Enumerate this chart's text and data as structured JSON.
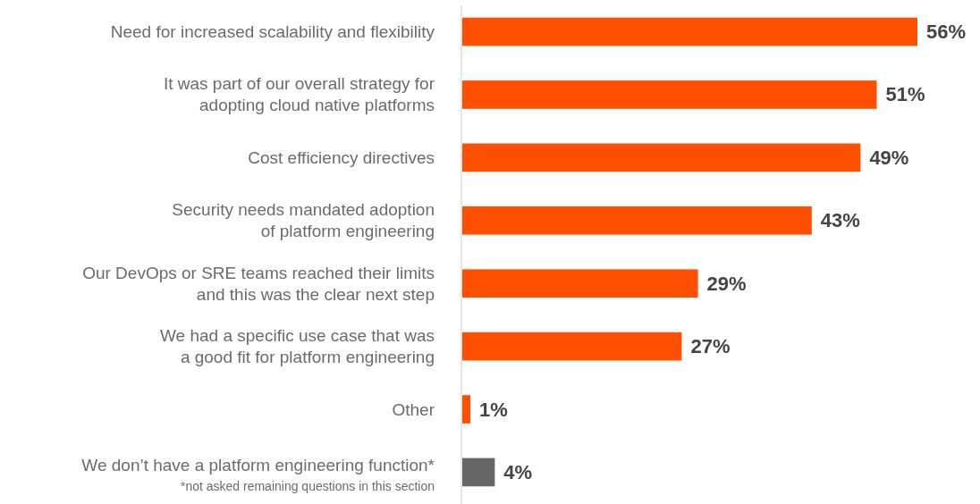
{
  "chart_data": {
    "type": "bar",
    "orientation": "horizontal",
    "value_labels": [
      "56%",
      "51%",
      "49%",
      "43%",
      "29%",
      "27%",
      "1%",
      "4%"
    ],
    "categories": [
      "Need for increased scalability and flexibility",
      "It was part of our overall strategy for\nadopting cloud native platforms",
      "Cost efficiency directives",
      "Security needs mandated adoption\nof platform engineering",
      "Our DevOps or SRE teams reached their limits\nand this was the clear next step",
      "We had a specific use case that was\na good fit for platform engineering",
      "Other",
      "We don’t have a platform engineering function*"
    ],
    "values": [
      56,
      51,
      49,
      43,
      29,
      27,
      1,
      4
    ],
    "colors": [
      "#fe5000",
      "#fe5000",
      "#fe5000",
      "#fe5000",
      "#fe5000",
      "#fe5000",
      "#fe5000",
      "#666666"
    ],
    "annotations": [
      "*not asked remaining questions in this section"
    ]
  }
}
